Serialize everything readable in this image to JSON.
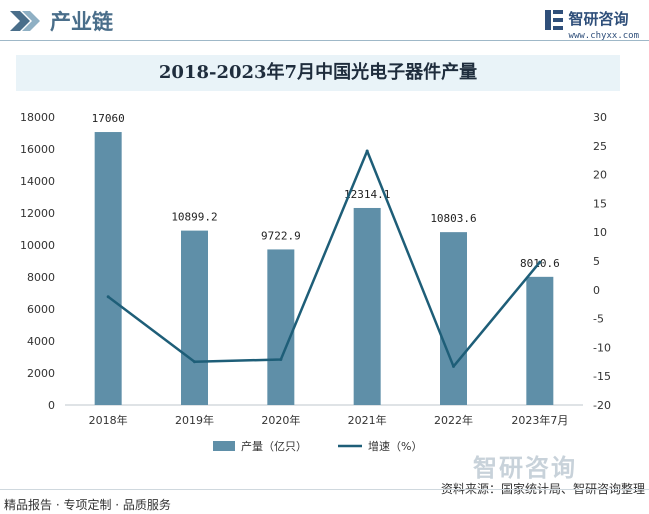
{
  "header": {
    "title": "产业链",
    "brand_name": "智研咨询",
    "brand_url": "www.chyxx.com"
  },
  "footer": {
    "left_text": "精品报告 · 专项定制 · 品质服务",
    "source_text": "资料来源：国家统计局、智研咨询整理",
    "watermark": "智研咨询"
  },
  "chart_data": {
    "type": "bar",
    "title": "2018-2023年7月中国光电子器件产量",
    "categories": [
      "2018年",
      "2019年",
      "2020年",
      "2021年",
      "2022年",
      "2023年7月"
    ],
    "series": [
      {
        "name": "产量（亿只）",
        "type": "bar",
        "axis": "left",
        "color": "#5f8fa8",
        "values": [
          17060,
          10899.2,
          9722.9,
          12314.1,
          10803.6,
          8010.6
        ],
        "labels": [
          "17060",
          "10899.2",
          "9722.9",
          "12314.1",
          "10803.6",
          "8010.6"
        ]
      },
      {
        "name": "增速（%）",
        "type": "line",
        "axis": "right",
        "color": "#1e5e78",
        "values": [
          -1.2,
          -12.5,
          -12.1,
          24.1,
          -13.3,
          4.8
        ]
      }
    ],
    "y_left": {
      "min": 0,
      "max": 18000,
      "step": 2000,
      "ticks": [
        "0",
        "2000",
        "4000",
        "6000",
        "8000",
        "10000",
        "12000",
        "14000",
        "16000",
        "18000"
      ]
    },
    "y_right": {
      "min": -20,
      "max": 30,
      "step": 5,
      "ticks": [
        "-20",
        "-15",
        "-10",
        "-5",
        "0",
        "5",
        "10",
        "15",
        "20",
        "25",
        "30"
      ]
    },
    "legend_position": "bottom",
    "grid": false
  }
}
